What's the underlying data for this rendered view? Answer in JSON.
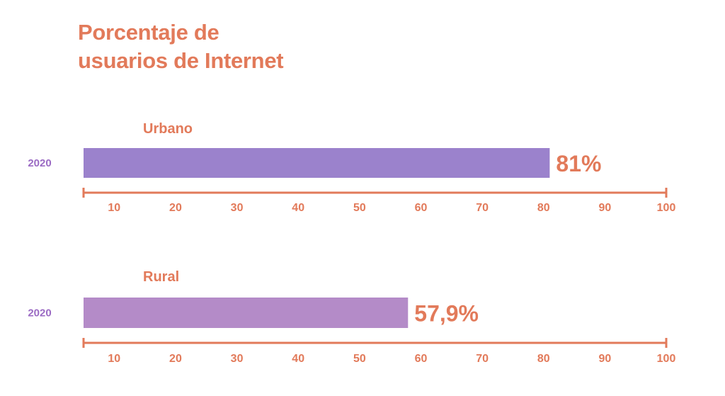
{
  "title": {
    "line1": "Porcentaje de",
    "line2": "usuarios de Internet"
  },
  "colors": {
    "accent": "#e27a5a",
    "urban_bar": "#9b82cc",
    "rural_bar": "#b48bc8",
    "year_text": "#9b6bc4"
  },
  "chart_data": [
    {
      "type": "bar",
      "orientation": "horizontal",
      "title": "Urbano",
      "categories": [
        "2020"
      ],
      "values": [
        81
      ],
      "value_label": "81%",
      "xlim": [
        5,
        100
      ],
      "x_ticks": [
        10,
        20,
        30,
        40,
        50,
        60,
        70,
        80,
        90,
        100
      ],
      "grid": false
    },
    {
      "type": "bar",
      "orientation": "horizontal",
      "title": "Rural",
      "categories": [
        "2020"
      ],
      "values": [
        57.9
      ],
      "value_label": "57,9%",
      "xlim": [
        5,
        100
      ],
      "x_ticks": [
        10,
        20,
        30,
        40,
        50,
        60,
        70,
        80,
        90,
        100
      ],
      "grid": false
    }
  ]
}
